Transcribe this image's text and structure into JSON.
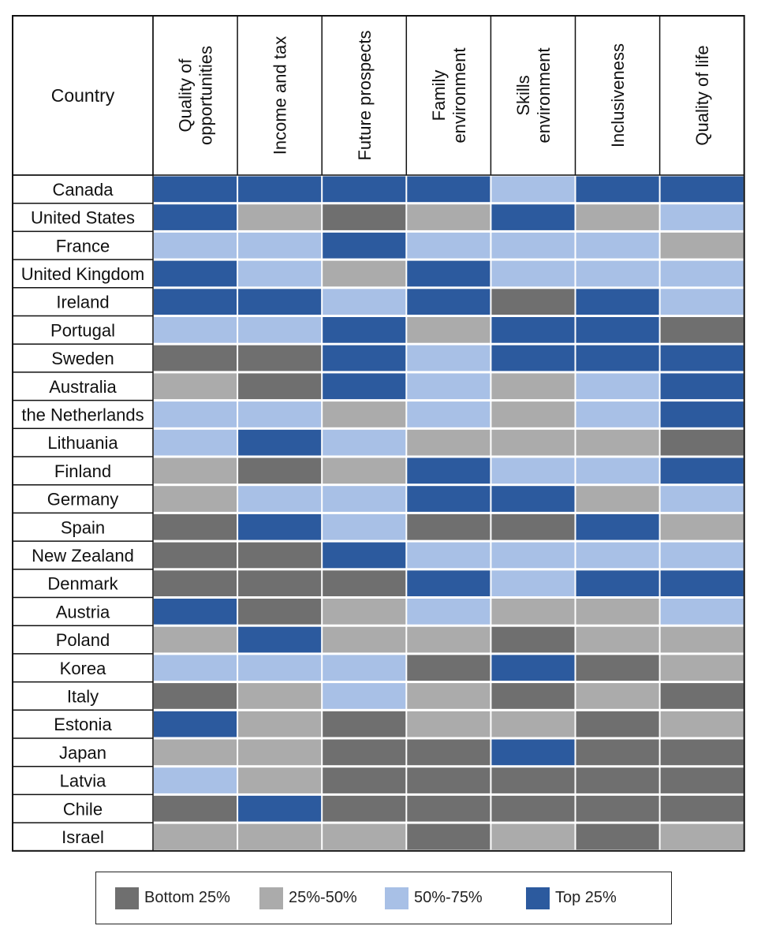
{
  "chart_data": {
    "type": "heatmap",
    "corner_label": "Country",
    "columns": [
      [
        "Quality of",
        "opportunities"
      ],
      [
        "Income and tax"
      ],
      [
        "Future prospects"
      ],
      [
        "Family",
        "environment"
      ],
      [
        "Skills",
        "environment"
      ],
      [
        "Inclusiveness"
      ],
      [
        "Quality of life"
      ]
    ],
    "categories": [
      {
        "key": "bottom",
        "label": "Bottom 25%",
        "color": "#6f6f6f"
      },
      {
        "key": "q2",
        "label": "25%-50%",
        "color": "#ababab"
      },
      {
        "key": "q3",
        "label": "50%-75%",
        "color": "#a8c0e6"
      },
      {
        "key": "top",
        "label": "Top 25%",
        "color": "#2c5a9e"
      }
    ],
    "rows": [
      {
        "country": "Canada",
        "values": [
          "top",
          "top",
          "top",
          "top",
          "q3",
          "top",
          "top"
        ]
      },
      {
        "country": "United States",
        "values": [
          "top",
          "q2",
          "bottom",
          "q2",
          "top",
          "q2",
          "q3"
        ]
      },
      {
        "country": "France",
        "values": [
          "q3",
          "q3",
          "top",
          "q3",
          "q3",
          "q3",
          "q2"
        ]
      },
      {
        "country": "United Kingdom",
        "values": [
          "top",
          "q3",
          "q2",
          "top",
          "q3",
          "q3",
          "q3"
        ]
      },
      {
        "country": "Ireland",
        "values": [
          "top",
          "top",
          "q3",
          "top",
          "bottom",
          "top",
          "q3"
        ]
      },
      {
        "country": "Portugal",
        "values": [
          "q3",
          "q3",
          "top",
          "q2",
          "top",
          "top",
          "bottom"
        ]
      },
      {
        "country": "Sweden",
        "values": [
          "bottom",
          "bottom",
          "top",
          "q3",
          "top",
          "top",
          "top"
        ]
      },
      {
        "country": "Australia",
        "values": [
          "q2",
          "bottom",
          "top",
          "q3",
          "q2",
          "q3",
          "top"
        ]
      },
      {
        "country": "the Netherlands",
        "values": [
          "q3",
          "q3",
          "q2",
          "q3",
          "q2",
          "q3",
          "top"
        ]
      },
      {
        "country": "Lithuania",
        "values": [
          "q3",
          "top",
          "q3",
          "q2",
          "q2",
          "q2",
          "bottom"
        ]
      },
      {
        "country": "Finland",
        "values": [
          "q2",
          "bottom",
          "q2",
          "top",
          "q3",
          "q3",
          "top"
        ]
      },
      {
        "country": "Germany",
        "values": [
          "q2",
          "q3",
          "q3",
          "top",
          "top",
          "q2",
          "q3"
        ]
      },
      {
        "country": "Spain",
        "values": [
          "bottom",
          "top",
          "q3",
          "bottom",
          "bottom",
          "top",
          "q2"
        ]
      },
      {
        "country": "New Zealand",
        "values": [
          "bottom",
          "bottom",
          "top",
          "q3",
          "q3",
          "q3",
          "q3"
        ]
      },
      {
        "country": "Denmark",
        "values": [
          "bottom",
          "bottom",
          "bottom",
          "top",
          "q3",
          "top",
          "top"
        ]
      },
      {
        "country": "Austria",
        "values": [
          "top",
          "bottom",
          "q2",
          "q3",
          "q2",
          "q2",
          "q3"
        ]
      },
      {
        "country": "Poland",
        "values": [
          "q2",
          "top",
          "q2",
          "q2",
          "bottom",
          "q2",
          "q2"
        ]
      },
      {
        "country": "Korea",
        "values": [
          "q3",
          "q3",
          "q3",
          "bottom",
          "top",
          "bottom",
          "q2"
        ]
      },
      {
        "country": "Italy",
        "values": [
          "bottom",
          "q2",
          "q3",
          "q2",
          "bottom",
          "q2",
          "bottom"
        ]
      },
      {
        "country": "Estonia",
        "values": [
          "top",
          "q2",
          "bottom",
          "q2",
          "q2",
          "bottom",
          "q2"
        ]
      },
      {
        "country": "Japan",
        "values": [
          "q2",
          "q2",
          "bottom",
          "bottom",
          "top",
          "bottom",
          "bottom"
        ]
      },
      {
        "country": "Latvia",
        "values": [
          "q3",
          "q2",
          "bottom",
          "bottom",
          "bottom",
          "bottom",
          "bottom"
        ]
      },
      {
        "country": "Chile",
        "values": [
          "bottom",
          "top",
          "bottom",
          "bottom",
          "bottom",
          "bottom",
          "bottom"
        ]
      },
      {
        "country": "Israel",
        "values": [
          "q2",
          "q2",
          "q2",
          "bottom",
          "q2",
          "bottom",
          "q2"
        ]
      }
    ]
  }
}
